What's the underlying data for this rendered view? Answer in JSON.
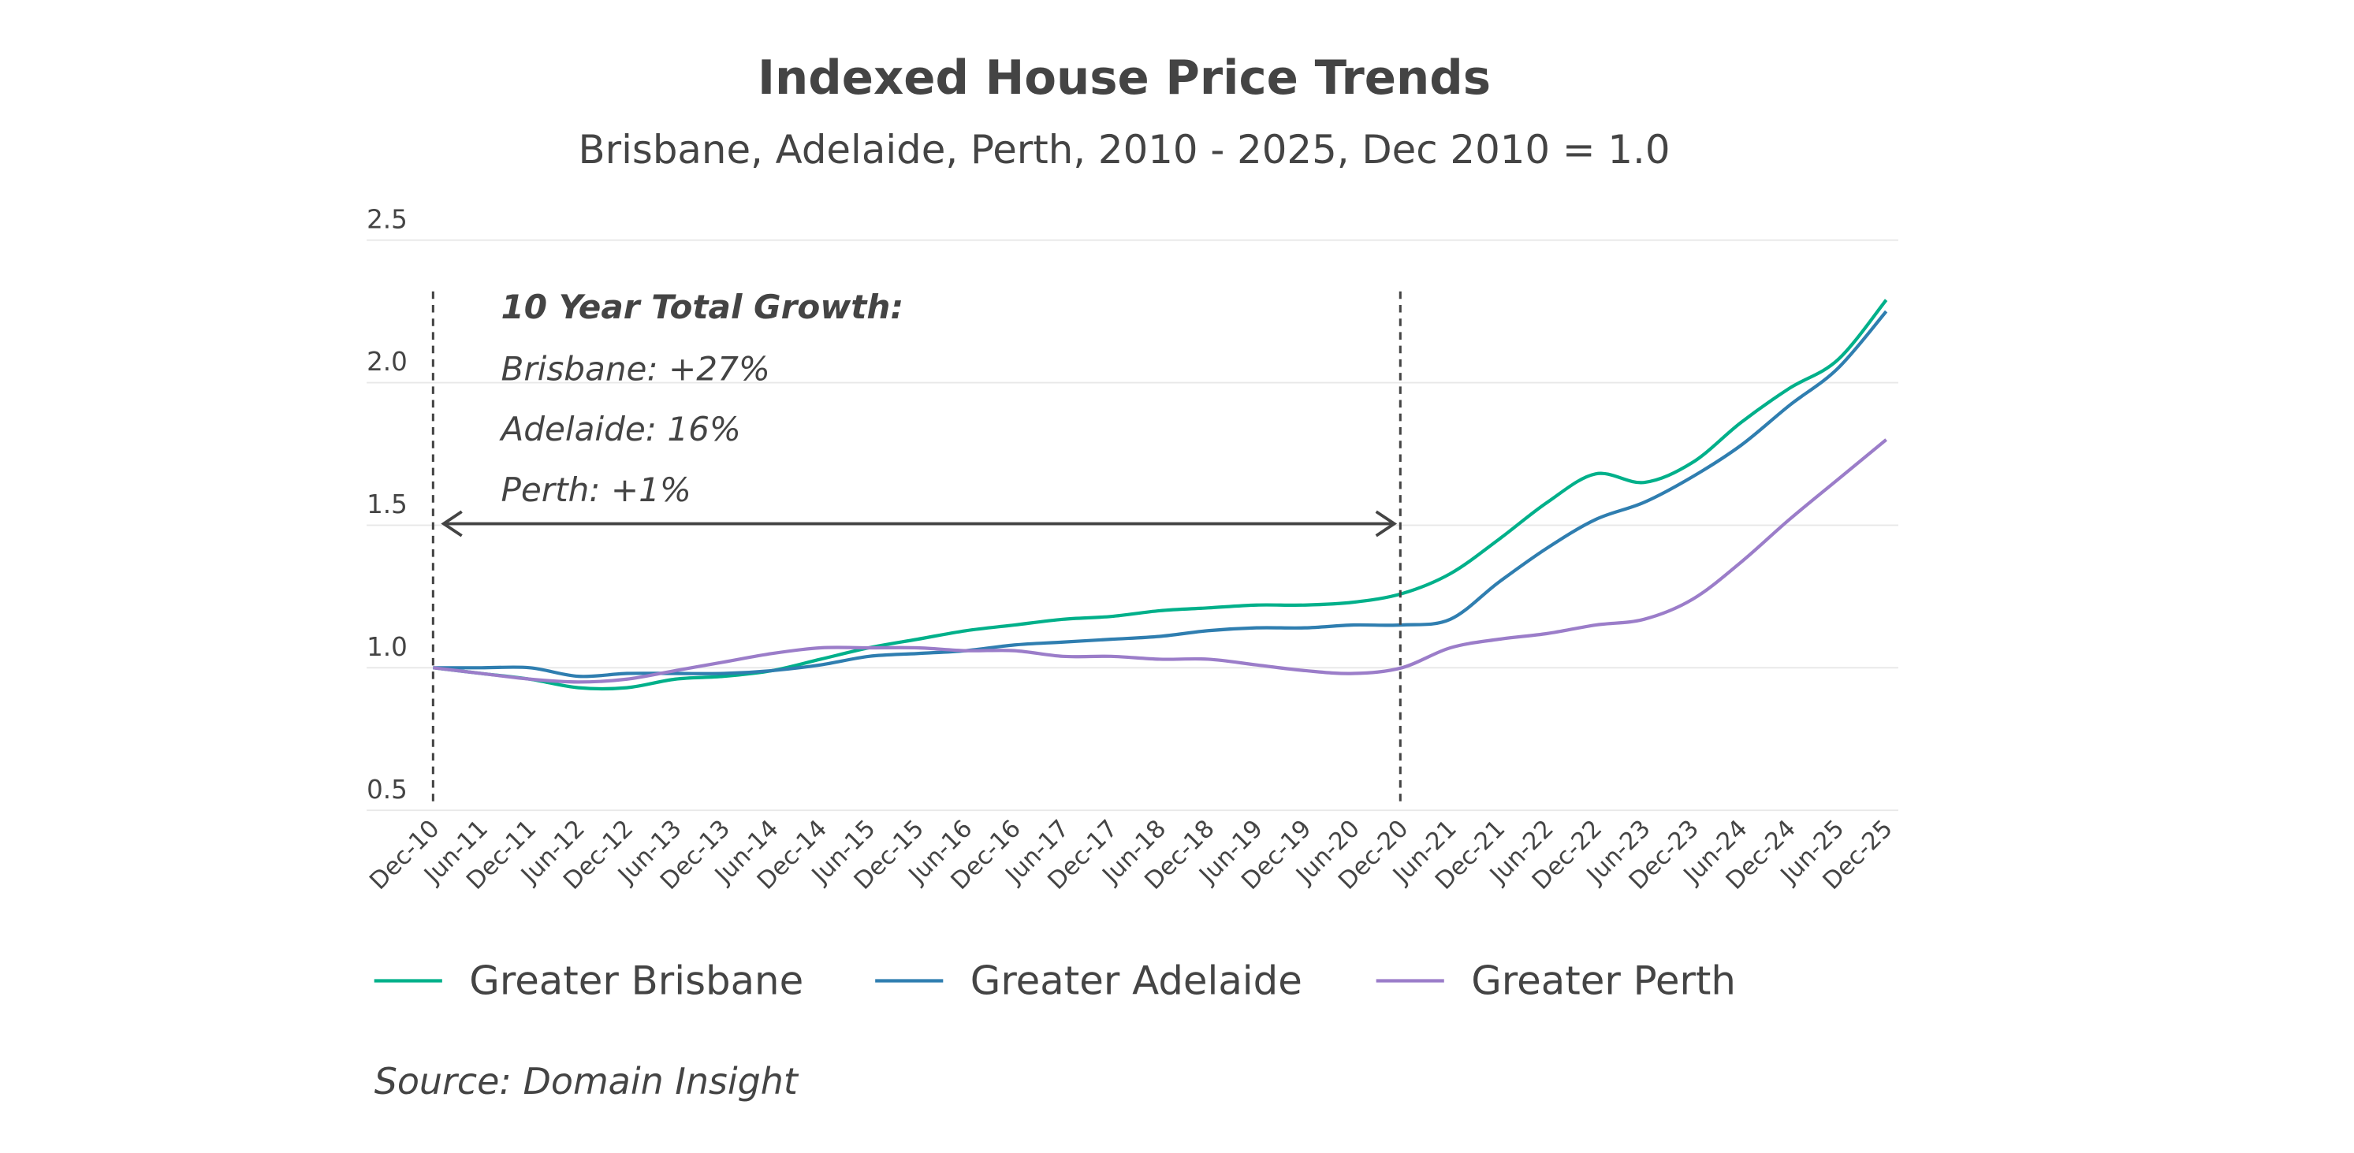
{
  "chart_data": {
    "type": "line",
    "title": "Indexed House Price Trends",
    "subtitle": "Brisbane, Adelaide, Perth, 2010 - 2025, Dec 2010 = 1.0",
    "xlabel": "",
    "ylabel": "",
    "ylim": [
      0.5,
      2.5
    ],
    "yticks": [
      "0.5",
      "1.0",
      "1.5",
      "2.0",
      "2.5"
    ],
    "grid": true,
    "legend_position": "bottom",
    "categories": [
      "Dec-10",
      "Jun-11",
      "Dec-11",
      "Jun-12",
      "Dec-12",
      "Jun-13",
      "Dec-13",
      "Jun-14",
      "Dec-14",
      "Jun-15",
      "Dec-15",
      "Jun-16",
      "Dec-16",
      "Jun-17",
      "Dec-17",
      "Jun-18",
      "Dec-18",
      "Jun-19",
      "Dec-19",
      "Jun-20",
      "Dec-20",
      "Jun-21",
      "Dec-21",
      "Jun-22",
      "Dec-22",
      "Jun-23",
      "Dec-23",
      "Jun-24",
      "Dec-24",
      "Jun-25",
      "Dec-25"
    ],
    "series": [
      {
        "name": "Greater Brisbane",
        "color": "#00b08a",
        "values": [
          1.0,
          0.98,
          0.96,
          0.93,
          0.93,
          0.96,
          0.97,
          0.99,
          1.03,
          1.07,
          1.1,
          1.13,
          1.15,
          1.17,
          1.18,
          1.2,
          1.21,
          1.22,
          1.22,
          1.23,
          1.26,
          1.33,
          1.45,
          1.58,
          1.68,
          1.65,
          1.72,
          1.86,
          1.98,
          2.08,
          2.29
        ]
      },
      {
        "name": "Greater Adelaide",
        "color": "#2f7eb0",
        "values": [
          1.0,
          1.0,
          1.0,
          0.97,
          0.98,
          0.98,
          0.98,
          0.99,
          1.01,
          1.04,
          1.05,
          1.06,
          1.08,
          1.09,
          1.1,
          1.11,
          1.13,
          1.14,
          1.14,
          1.15,
          1.15,
          1.17,
          1.3,
          1.42,
          1.52,
          1.58,
          1.67,
          1.78,
          1.92,
          2.05,
          2.25
        ]
      },
      {
        "name": "Greater Perth",
        "color": "#9b7dc9",
        "values": [
          1.0,
          0.98,
          0.96,
          0.95,
          0.96,
          0.99,
          1.02,
          1.05,
          1.07,
          1.07,
          1.07,
          1.06,
          1.06,
          1.04,
          1.04,
          1.03,
          1.03,
          1.01,
          0.99,
          0.98,
          1.0,
          1.07,
          1.1,
          1.12,
          1.15,
          1.17,
          1.24,
          1.37,
          1.52,
          1.66,
          1.8
        ]
      }
    ],
    "annotations": {
      "period_start": "Dec-10",
      "period_end": "Dec-20",
      "heading": "10 Year Total Growth:",
      "lines": [
        "Brisbane: +27%",
        "Adelaide: 16%",
        "Perth: +1%"
      ]
    },
    "source": "Source: Domain Insight"
  },
  "colors": {
    "text": "#444444",
    "grid": "#e8e8e8",
    "annotation": "#444444"
  }
}
